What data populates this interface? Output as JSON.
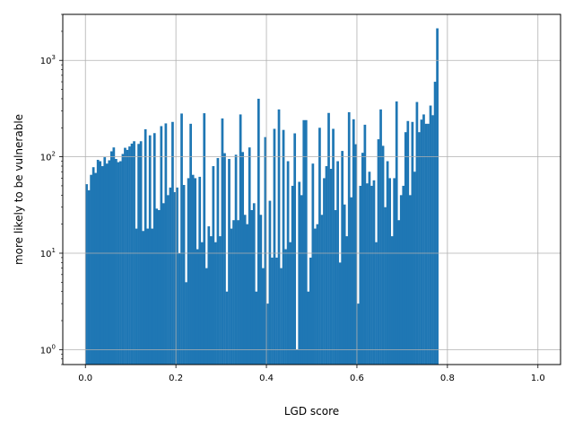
{
  "chart_data": {
    "type": "bar",
    "xlabel": "LGD score",
    "ylabel": "more likely to be vulnerable",
    "title": "",
    "x_range": [
      0,
      1
    ],
    "xlim": [
      -0.05,
      1.05
    ],
    "ylim": [
      0.7,
      3000
    ],
    "y_scale": "log",
    "grid": true,
    "bar_color": "#1f77b4",
    "bins": 200,
    "x_ticks": [
      {
        "value": 0.0,
        "label": "0.0"
      },
      {
        "value": 0.2,
        "label": "0.2"
      },
      {
        "value": 0.4,
        "label": "0.4"
      },
      {
        "value": 0.6,
        "label": "0.6"
      },
      {
        "value": 0.8,
        "label": "0.8"
      },
      {
        "value": 1.0,
        "label": "1.0"
      }
    ],
    "y_ticks": [
      {
        "value": 1,
        "base": "10",
        "exp": "0"
      },
      {
        "value": 10,
        "base": "10",
        "exp": "1"
      },
      {
        "value": 100,
        "base": "10",
        "exp": "2"
      },
      {
        "value": 1000,
        "base": "10",
        "exp": "3"
      }
    ],
    "values": [
      52,
      45,
      65,
      78,
      68,
      93,
      90,
      80,
      99,
      85,
      92,
      114,
      125,
      95,
      88,
      90,
      107,
      124,
      118,
      128,
      137,
      145,
      18,
      136,
      145,
      17,
      193,
      18,
      167,
      18,
      176,
      29,
      28,
      208,
      33,
      222,
      40,
      48,
      230,
      43,
      48,
      10,
      281,
      51,
      5,
      60,
      220,
      65,
      60,
      11,
      62,
      13,
      283,
      7,
      19,
      15,
      80,
      13,
      97,
      15,
      250,
      109,
      4,
      95,
      18,
      22,
      105,
      22,
      275,
      112,
      25,
      20,
      125,
      28,
      33,
      4,
      400,
      25,
      7,
      160,
      3,
      35,
      9,
      195,
      9,
      310,
      7,
      190,
      11,
      90,
      13,
      50,
      175,
      1,
      55,
      40,
      240,
      240,
      4,
      9,
      85,
      18,
      20,
      200,
      25,
      60,
      80,
      285,
      75,
      195,
      28,
      90,
      8,
      115,
      32,
      15,
      290,
      38,
      245,
      135,
      3,
      50,
      110,
      215,
      53,
      70,
      50,
      57,
      13,
      152,
      310,
      130,
      30,
      90,
      60,
      15,
      60,
      375,
      22,
      40,
      50,
      180,
      235,
      40,
      230,
      70,
      370,
      180,
      243,
      275,
      220,
      220,
      340,
      270,
      600,
      2150
    ]
  }
}
